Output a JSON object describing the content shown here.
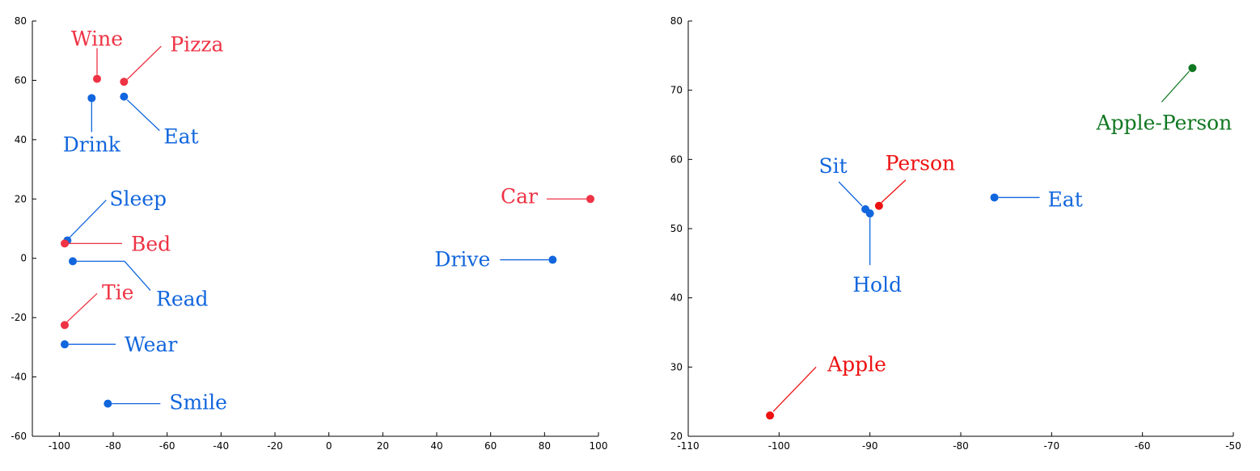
{
  "chart_data": [
    {
      "type": "scatter",
      "title": "",
      "xlabel": "",
      "ylabel": "",
      "xlim": [
        -110,
        100
      ],
      "ylim": [
        -60,
        80
      ],
      "x_ticks": [
        -100,
        -80,
        -60,
        -40,
        -20,
        0,
        20,
        40,
        60,
        80,
        100
      ],
      "y_ticks": [
        -60,
        -40,
        -20,
        0,
        20,
        40,
        60,
        80
      ],
      "grid": false,
      "colors": {
        "object": "#ee3344",
        "verb": "#1166dd"
      },
      "points": [
        {
          "label": "Wine",
          "x": -86,
          "y": 60.5,
          "kind": "object"
        },
        {
          "label": "Pizza",
          "x": -76,
          "y": 59.5,
          "kind": "object"
        },
        {
          "label": "Drink",
          "x": -88,
          "y": 54,
          "kind": "verb"
        },
        {
          "label": "Eat",
          "x": -76,
          "y": 54.5,
          "kind": "verb"
        },
        {
          "label": "Car",
          "x": 97,
          "y": 20,
          "kind": "object"
        },
        {
          "label": "Sleep",
          "x": -97,
          "y": 6,
          "kind": "verb"
        },
        {
          "label": "Bed",
          "x": -98,
          "y": 5,
          "kind": "object"
        },
        {
          "label": "Read",
          "x": -95,
          "y": -1,
          "kind": "verb"
        },
        {
          "label": "Drive",
          "x": 83,
          "y": -0.5,
          "kind": "verb"
        },
        {
          "label": "Tie",
          "x": -98,
          "y": -22.5,
          "kind": "object"
        },
        {
          "label": "Wear",
          "x": -98,
          "y": -29,
          "kind": "verb"
        },
        {
          "label": "Smile",
          "x": -82,
          "y": -49,
          "kind": "verb"
        }
      ]
    },
    {
      "type": "scatter",
      "title": "",
      "xlabel": "",
      "ylabel": "",
      "xlim": [
        -110,
        -50
      ],
      "ylim": [
        20,
        80
      ],
      "x_ticks": [
        -110,
        -100,
        -90,
        -80,
        -70,
        -60,
        -50
      ],
      "y_ticks": [
        20,
        30,
        40,
        50,
        60,
        70,
        80
      ],
      "grid": false,
      "colors": {
        "object": "#ee1111",
        "verb": "#1166dd",
        "pair": "#117722"
      },
      "points": [
        {
          "label": "Apple-Person",
          "x": -54.5,
          "y": 73.2,
          "kind": "pair"
        },
        {
          "label": "Person",
          "x": -89,
          "y": 53.3,
          "kind": "object"
        },
        {
          "label": "Sit",
          "x": -90.5,
          "y": 52.8,
          "kind": "verb"
        },
        {
          "label": "Hold",
          "x": -90,
          "y": 52.2,
          "kind": "verb"
        },
        {
          "label": "Eat",
          "x": -76.3,
          "y": 54.5,
          "kind": "verb"
        },
        {
          "label": "Apple",
          "x": -101,
          "y": 23,
          "kind": "object"
        }
      ]
    }
  ]
}
